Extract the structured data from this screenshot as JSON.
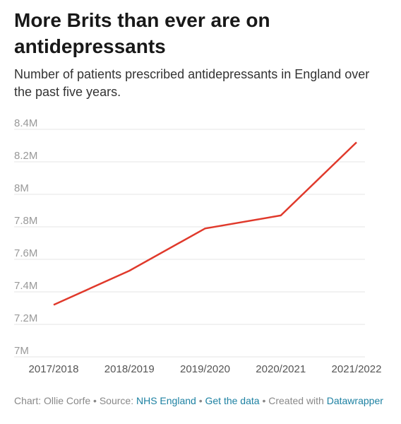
{
  "chart_data": {
    "type": "line",
    "title": "More Brits than ever are on antidepressants",
    "subtitle": "Number of patients prescribed antidepressants in England over the past five years.",
    "categories": [
      "2017/2018",
      "2018/2019",
      "2019/2020",
      "2020/2021",
      "2021/2022"
    ],
    "values": [
      7320000,
      7530000,
      7790000,
      7870000,
      8320000
    ],
    "color": "#e0392b",
    "ylim": [
      7000000,
      8400000
    ],
    "yticks": [
      {
        "value": 7000000,
        "label": "7M"
      },
      {
        "value": 7200000,
        "label": "7.2M"
      },
      {
        "value": 7400000,
        "label": "7.4M"
      },
      {
        "value": 7600000,
        "label": "7.6M"
      },
      {
        "value": 7800000,
        "label": "7.8M"
      },
      {
        "value": 8000000,
        "label": "8M"
      },
      {
        "value": 8200000,
        "label": "8.2M"
      },
      {
        "value": 8400000,
        "label": "8.4M"
      }
    ],
    "grid": true
  },
  "footer": {
    "credit": "Chart: Ollie Corfe",
    "separator": "•",
    "source_label": "Source:",
    "source": "NHS England",
    "get_data": "Get the data",
    "created": "Created with",
    "tool": "Datawrapper"
  }
}
